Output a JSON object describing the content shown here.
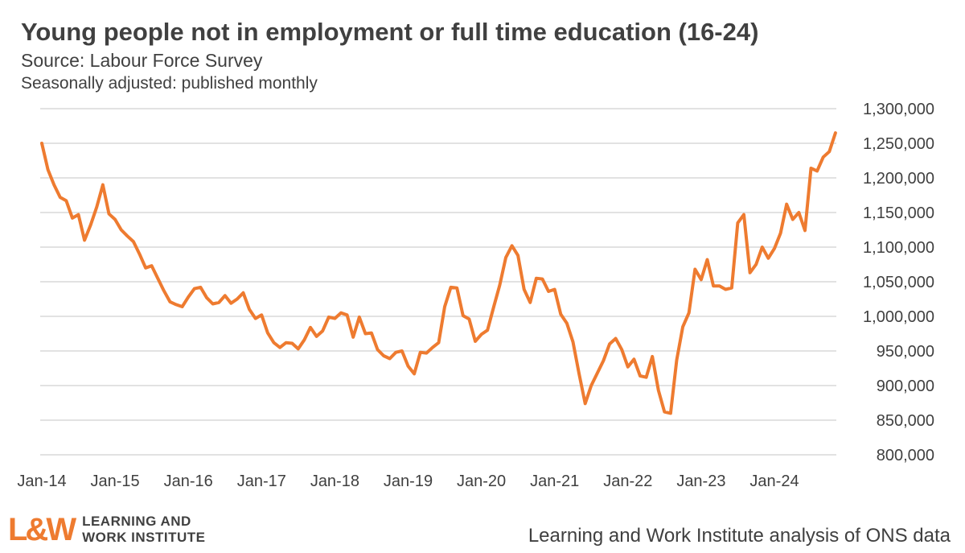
{
  "header": {
    "title": "Young people not in employment or full time education (16-24)",
    "subtitle": "Source: Labour Force Survey",
    "note": "Seasonally adjusted: published monthly"
  },
  "footer": {
    "logo_mark": "L&W",
    "logo_line1": "LEARNING AND",
    "logo_line2": "WORK INSTITUTE",
    "credit": "Learning and Work Institute analysis of ONS data"
  },
  "colors": {
    "series": "#ee7b30",
    "grid": "#d9d9d9",
    "text": "#404040"
  },
  "chart_data": {
    "type": "line",
    "title": "Young people not in employment or full time education (16-24)",
    "xlabel": "",
    "ylabel": "",
    "ylim": [
      800000,
      1300000
    ],
    "y_ticks": [
      800000,
      850000,
      900000,
      950000,
      1000000,
      1050000,
      1100000,
      1150000,
      1200000,
      1250000,
      1300000
    ],
    "y_tick_labels": [
      "800,000",
      "850,000",
      "900,000",
      "950,000",
      "1,000,000",
      "1,050,000",
      "1,100,000",
      "1,150,000",
      "1,200,000",
      "1,250,000",
      "1,300,000"
    ],
    "y_axis_position": "right",
    "grid": true,
    "legend": "none",
    "x_tick_labels": [
      "Jan-14",
      "Jan-15",
      "Jan-16",
      "Jan-17",
      "Jan-18",
      "Jan-19",
      "Jan-20",
      "Jan-21",
      "Jan-22",
      "Jan-23",
      "Jan-24"
    ],
    "x_start": "Jan-14",
    "x_frequency": "monthly",
    "series": [
      {
        "values": [
          1250000,
          1212000,
          1190000,
          1172000,
          1167000,
          1142000,
          1147000,
          1110000,
          1132000,
          1158000,
          1190000,
          1148000,
          1140000,
          1125000,
          1116000,
          1108000,
          1090000,
          1070000,
          1073000,
          1055000,
          1037000,
          1021000,
          1017000,
          1014000,
          1028000,
          1040000,
          1042000,
          1027000,
          1018000,
          1020000,
          1030000,
          1019000,
          1025000,
          1034000,
          1010000,
          997000,
          1002000,
          976000,
          962000,
          955000,
          962000,
          961000,
          953000,
          966000,
          984000,
          971000,
          979000,
          999000,
          997000,
          1005000,
          1002000,
          970000,
          999000,
          975000,
          976000,
          952000,
          943000,
          939000,
          948000,
          950000,
          928000,
          917000,
          948000,
          947000,
          955000,
          962000,
          1014000,
          1042000,
          1041000,
          1001000,
          996000,
          964000,
          974000,
          980000,
          1013000,
          1045000,
          1085000,
          1102000,
          1088000,
          1039000,
          1020000,
          1055000,
          1054000,
          1036000,
          1039000,
          1003000,
          990000,
          963000,
          917000,
          874000,
          900000,
          918000,
          936000,
          960000,
          968000,
          952000,
          927000,
          938000,
          914000,
          912000,
          942000,
          893000,
          862000,
          860000,
          937000,
          985000,
          1005000,
          1068000,
          1053000,
          1082000,
          1044000,
          1044000,
          1039000,
          1041000,
          1135000,
          1147000,
          1063000,
          1075000,
          1100000,
          1084000,
          1098000,
          1120000,
          1162000,
          1140000,
          1150000,
          1124000,
          1214000,
          1210000,
          1230000,
          1238000,
          1265000
        ]
      }
    ]
  }
}
